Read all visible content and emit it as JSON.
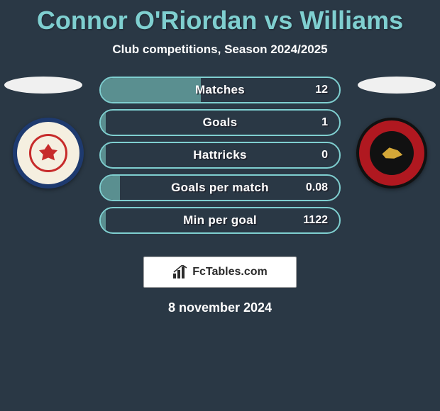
{
  "title": "Connor O'Riordan vs Williams",
  "subtitle": "Club competitions, Season 2024/2025",
  "date": "8 november 2024",
  "logo_text": "FcTables.com",
  "colors": {
    "title": "#7fcfd0",
    "background": "#2a3845",
    "flag_left": "#f0f0f0",
    "flag_right": "#f0f0f0",
    "bar_border": "#7fcfd0",
    "bar_fill": "#5a8f90"
  },
  "stats": [
    {
      "label": "Matches",
      "value": "12",
      "fill_pct": 42
    },
    {
      "label": "Goals",
      "value": "1",
      "fill_pct": 2
    },
    {
      "label": "Hattricks",
      "value": "0",
      "fill_pct": 2
    },
    {
      "label": "Goals per match",
      "value": "0.08",
      "fill_pct": 8
    },
    {
      "label": "Min per goal",
      "value": "1122",
      "fill_pct": 2
    }
  ],
  "badges": {
    "left": {
      "name": "crewe-alexandra-badge"
    },
    "right": {
      "name": "walsall-badge"
    }
  }
}
